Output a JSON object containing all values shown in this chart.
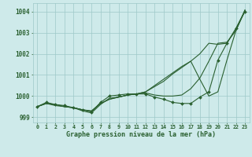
{
  "title": "Graphe pression niveau de la mer (hPa)",
  "bg_color": "#ceeaea",
  "grid_color": "#9ec8c8",
  "line_color": "#2a6030",
  "xlim": [
    -0.5,
    23.5
  ],
  "ylim": [
    998.75,
    1004.4
  ],
  "yticks": [
    999,
    1000,
    1001,
    1002,
    1003,
    1004
  ],
  "series": [
    {
      "x": [
        0,
        1,
        2,
        3,
        4,
        5,
        6,
        7,
        8,
        9,
        10,
        11,
        12,
        13,
        14,
        15,
        16,
        17,
        18,
        19,
        20,
        21,
        22,
        23
      ],
      "y": [
        999.5,
        999.65,
        999.6,
        999.5,
        999.45,
        999.35,
        999.3,
        999.65,
        999.85,
        999.95,
        1000.05,
        1000.1,
        1000.2,
        1000.45,
        1000.7,
        1001.05,
        1001.35,
        1001.65,
        1002.0,
        1002.5,
        1002.45,
        1002.5,
        1003.2,
        1004.05
      ],
      "has_markers": false
    },
    {
      "x": [
        0,
        1,
        2,
        3,
        4,
        5,
        6,
        7,
        8,
        9,
        10,
        11,
        12,
        13,
        14,
        15,
        16,
        17,
        18,
        19,
        20,
        21,
        22,
        23
      ],
      "y": [
        999.5,
        999.65,
        999.6,
        999.5,
        999.45,
        999.35,
        999.28,
        999.65,
        999.85,
        999.95,
        1000.05,
        1000.1,
        1000.2,
        1000.5,
        1000.8,
        1001.1,
        1001.4,
        1001.65,
        1000.8,
        1000.0,
        1000.2,
        1001.7,
        1003.1,
        1004.05
      ],
      "has_markers": false
    },
    {
      "x": [
        0,
        1,
        2,
        3,
        4,
        5,
        6,
        7,
        8,
        9,
        10,
        11,
        12,
        13,
        14,
        15,
        16,
        17,
        18,
        19,
        20,
        21,
        22,
        23
      ],
      "y": [
        999.5,
        999.7,
        999.6,
        999.55,
        999.45,
        999.35,
        999.25,
        999.7,
        1000.0,
        1000.05,
        1000.1,
        1000.1,
        1000.1,
        999.95,
        999.85,
        999.7,
        999.65,
        999.65,
        999.95,
        1000.2,
        1001.7,
        1002.5,
        1003.2,
        1004.0
      ],
      "has_markers": true
    },
    {
      "x": [
        0,
        1,
        2,
        3,
        4,
        5,
        6,
        7,
        8,
        9,
        10,
        11,
        12,
        13,
        14,
        15,
        16,
        17,
        18,
        19,
        20,
        21,
        22,
        23
      ],
      "y": [
        999.5,
        999.65,
        999.55,
        999.5,
        999.45,
        999.3,
        999.2,
        999.6,
        999.9,
        999.95,
        1000.05,
        1000.1,
        1000.15,
        1000.05,
        1000.0,
        1000.0,
        1000.05,
        1000.35,
        1000.85,
        1001.65,
        1002.5,
        1002.55,
        1003.1,
        1004.08
      ],
      "has_markers": false
    }
  ]
}
